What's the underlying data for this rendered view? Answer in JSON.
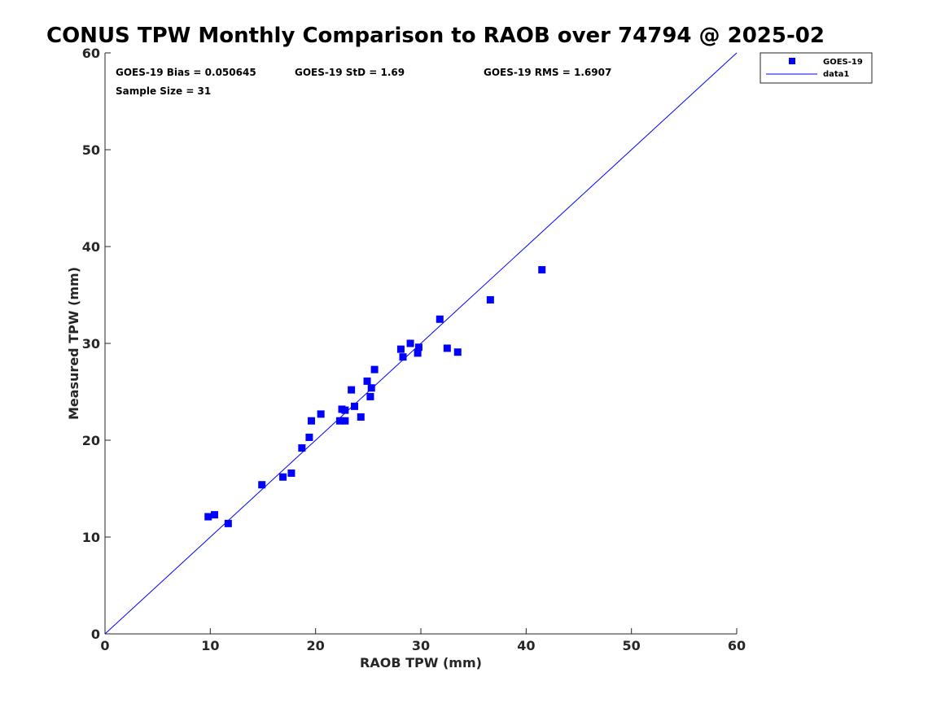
{
  "chart_data": {
    "type": "scatter",
    "title": "CONUS TPW Monthly Comparison to RAOB over 74794 @ 2025-02",
    "xlabel": "RAOB TPW (mm)",
    "ylabel": "Measured TPW (mm)",
    "xlim": [
      0,
      60
    ],
    "ylim": [
      0,
      60
    ],
    "xticks": [
      "0",
      "10",
      "20",
      "30",
      "40",
      "50",
      "60"
    ],
    "yticks": [
      "0",
      "10",
      "20",
      "30",
      "40",
      "50",
      "60"
    ],
    "grid": false,
    "legend_position": "top-right",
    "annotations": {
      "bias": "GOES-19 Bias = 0.050645",
      "std": "GOES-19 StD = 1.69",
      "rms": "GOES-19 RMS = 1.6907",
      "sample_size": "Sample Size = 31"
    },
    "series": [
      {
        "name": "GOES-19",
        "kind": "scatter",
        "marker": "square",
        "color": "#0000ff",
        "points": [
          {
            "x": 9.8,
            "y": 12.1
          },
          {
            "x": 10.4,
            "y": 12.3
          },
          {
            "x": 11.7,
            "y": 11.4
          },
          {
            "x": 14.9,
            "y": 15.4
          },
          {
            "x": 16.9,
            "y": 16.2
          },
          {
            "x": 17.7,
            "y": 16.6
          },
          {
            "x": 18.7,
            "y": 19.2
          },
          {
            "x": 19.4,
            "y": 20.3
          },
          {
            "x": 19.6,
            "y": 22.0
          },
          {
            "x": 20.5,
            "y": 22.7
          },
          {
            "x": 22.3,
            "y": 22.0
          },
          {
            "x": 22.5,
            "y": 23.2
          },
          {
            "x": 22.8,
            "y": 23.1
          },
          {
            "x": 22.8,
            "y": 22.0
          },
          {
            "x": 23.4,
            "y": 25.2
          },
          {
            "x": 23.7,
            "y": 23.5
          },
          {
            "x": 24.3,
            "y": 22.4
          },
          {
            "x": 24.9,
            "y": 26.1
          },
          {
            "x": 25.2,
            "y": 24.5
          },
          {
            "x": 25.3,
            "y": 25.4
          },
          {
            "x": 25.6,
            "y": 27.3
          },
          {
            "x": 28.1,
            "y": 29.4
          },
          {
            "x": 28.3,
            "y": 28.6
          },
          {
            "x": 29.0,
            "y": 30.0
          },
          {
            "x": 29.7,
            "y": 29.0
          },
          {
            "x": 29.8,
            "y": 29.6
          },
          {
            "x": 31.8,
            "y": 32.5
          },
          {
            "x": 32.5,
            "y": 29.5
          },
          {
            "x": 33.5,
            "y": 29.1
          },
          {
            "x": 36.6,
            "y": 34.5
          },
          {
            "x": 41.5,
            "y": 37.6
          }
        ]
      },
      {
        "name": "data1",
        "kind": "line",
        "color": "#0000ff",
        "points": [
          {
            "x": 0,
            "y": 0
          },
          {
            "x": 60,
            "y": 60
          }
        ]
      }
    ]
  }
}
